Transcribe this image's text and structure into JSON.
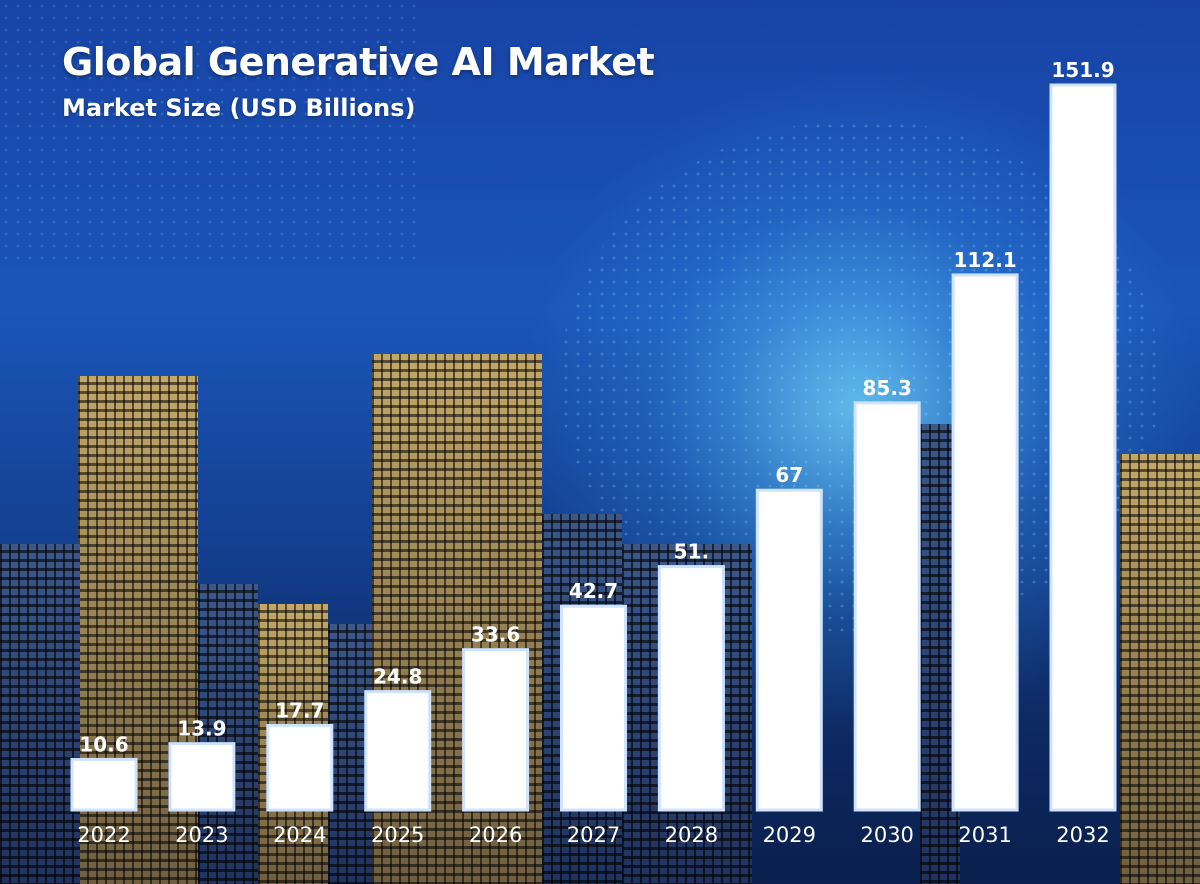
{
  "title": "Global Generative AI Market",
  "subtitle": "Market Size (USD Billions)",
  "colors": {
    "bar": "#ffffff",
    "background": "#1a4fae",
    "text": "#ffffff"
  },
  "chart_data": {
    "type": "bar",
    "title": "Global Generative AI Market",
    "subtitle": "Market Size (USD Billions)",
    "categories": [
      "2022",
      "2023",
      "2024",
      "2025",
      "2026",
      "2027",
      "2028",
      "2029",
      "2030",
      "2031",
      "2032"
    ],
    "values": [
      10.6,
      13.9,
      17.7,
      24.8,
      33.6,
      42.7,
      51,
      67,
      85.3,
      112.1,
      151.9
    ],
    "data_labels": [
      "10.6",
      "13.9",
      "17.7",
      "24.8",
      "33.6",
      "42.7",
      "51.",
      "67",
      "85.3",
      "112.1",
      "151.9"
    ],
    "xlabel": "",
    "ylabel": "",
    "ylim": [
      0,
      151.9
    ],
    "grid": false,
    "legend": "none"
  }
}
